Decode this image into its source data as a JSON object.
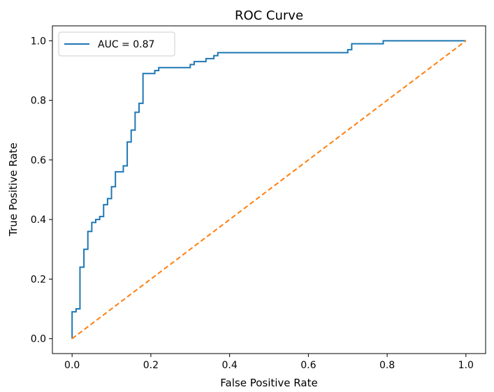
{
  "chart_data": {
    "type": "line",
    "title": "ROC Curve",
    "xlabel": "False Positive Rate",
    "ylabel": "True Positive Rate",
    "xlim": [
      -0.05,
      1.05
    ],
    "ylim": [
      -0.05,
      1.05
    ],
    "xticks": [
      0.0,
      0.2,
      0.4,
      0.6,
      0.8,
      1.0
    ],
    "xtick_labels": [
      "0.0",
      "0.2",
      "0.4",
      "0.6",
      "0.8",
      "1.0"
    ],
    "yticks": [
      0.0,
      0.2,
      0.4,
      0.6,
      0.8,
      1.0
    ],
    "ytick_labels": [
      "0.0",
      "0.2",
      "0.4",
      "0.6",
      "0.8",
      "1.0"
    ],
    "grid": false,
    "legend_position": "upper-left",
    "series": [
      {
        "name": "AUC = 0.87",
        "color": "#1f77b4",
        "style": "solid",
        "step": true,
        "x": [
          0.0,
          0.0,
          0.01,
          0.01,
          0.02,
          0.02,
          0.03,
          0.03,
          0.04,
          0.04,
          0.05,
          0.05,
          0.06,
          0.06,
          0.07,
          0.07,
          0.08,
          0.08,
          0.09,
          0.09,
          0.1,
          0.1,
          0.11,
          0.11,
          0.13,
          0.13,
          0.14,
          0.14,
          0.15,
          0.15,
          0.16,
          0.16,
          0.17,
          0.17,
          0.18,
          0.18,
          0.19,
          0.19,
          0.21,
          0.21,
          0.22,
          0.22,
          0.3,
          0.3,
          0.31,
          0.31,
          0.34,
          0.34,
          0.36,
          0.36,
          0.37,
          0.37,
          0.38,
          0.38,
          0.7,
          0.7,
          0.71,
          0.71,
          0.72,
          0.72,
          0.79,
          0.79,
          1.0
        ],
        "y": [
          0.0,
          0.09,
          0.09,
          0.1,
          0.1,
          0.24,
          0.24,
          0.3,
          0.3,
          0.36,
          0.36,
          0.39,
          0.39,
          0.4,
          0.4,
          0.41,
          0.41,
          0.45,
          0.45,
          0.47,
          0.47,
          0.51,
          0.51,
          0.56,
          0.56,
          0.58,
          0.58,
          0.66,
          0.66,
          0.7,
          0.7,
          0.76,
          0.76,
          0.79,
          0.79,
          0.89,
          0.89,
          0.89,
          0.89,
          0.9,
          0.9,
          0.91,
          0.91,
          0.92,
          0.92,
          0.93,
          0.93,
          0.94,
          0.94,
          0.95,
          0.95,
          0.96,
          0.96,
          0.96,
          0.96,
          0.97,
          0.97,
          0.99,
          0.99,
          0.99,
          0.99,
          1.0,
          1.0
        ]
      },
      {
        "name": "",
        "color": "#ff7f0e",
        "style": "dashed",
        "step": false,
        "x": [
          0.0,
          1.0
        ],
        "y": [
          0.0,
          1.0
        ]
      }
    ]
  }
}
